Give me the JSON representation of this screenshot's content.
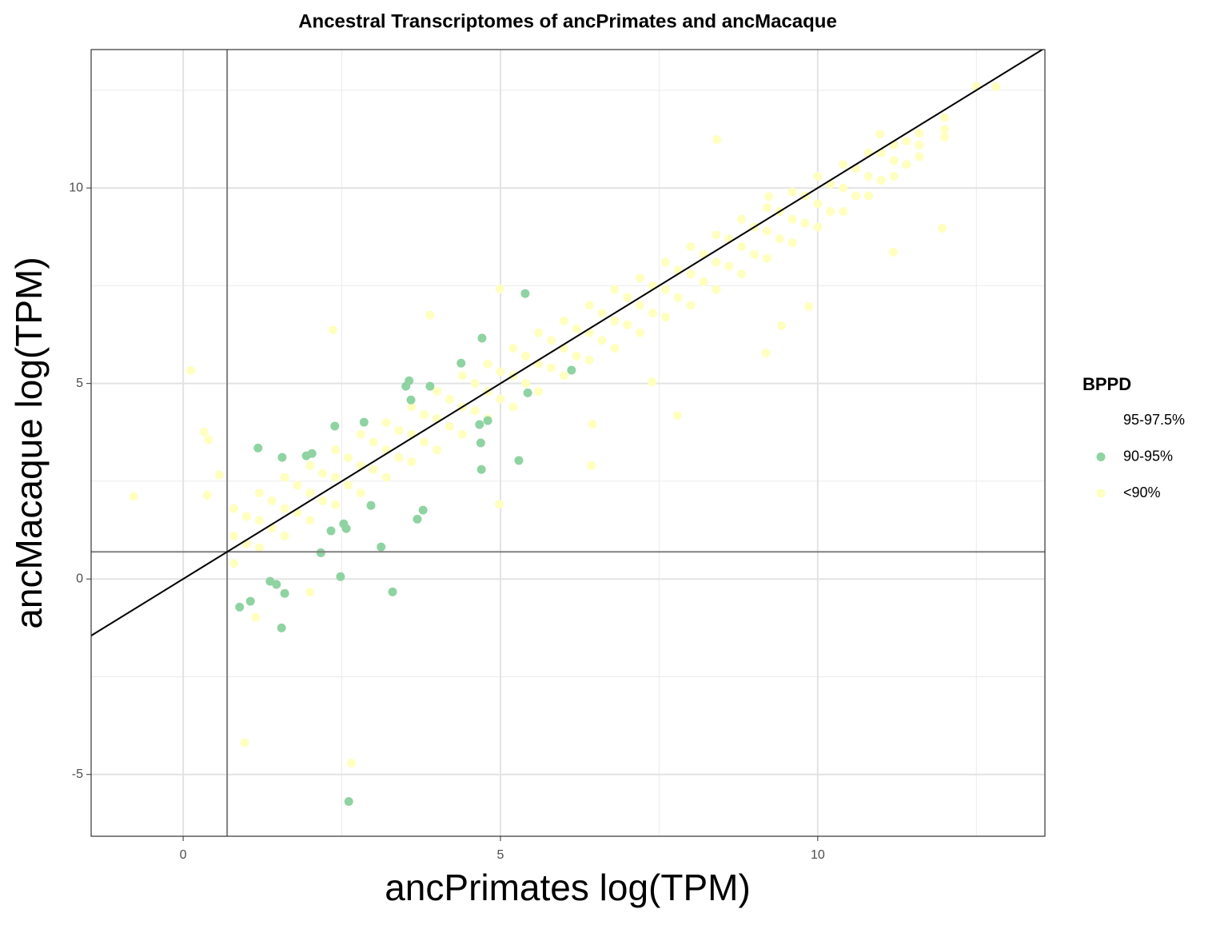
{
  "chart_data": {
    "type": "scatter",
    "title": "Ancestral Transcriptomes of ancPrimates and ancMacaque",
    "x_label": "ancPrimates log(TPM)",
    "y_label": "ancMacaque log(TPM)",
    "legend_title": "BPPD",
    "legend_position": "right",
    "grid": true,
    "xlim": [
      -1.45,
      13.58
    ],
    "ylim": [
      -6.58,
      13.54
    ],
    "xticks": [
      0,
      5,
      10
    ],
    "yticks": [
      -5,
      0,
      5,
      10
    ],
    "minor_xticks": [
      2.5,
      7.5,
      12.5
    ],
    "minor_yticks": [
      -2.5,
      2.5,
      7.5,
      12.5
    ],
    "reference_lines": {
      "x": 0.693,
      "y": 0.693,
      "slope": 1,
      "intercept": 0
    },
    "series": [
      {
        "name": "95-97.5%",
        "color": "#ffffff",
        "x": [],
        "values": []
      },
      {
        "name": "90-95%",
        "color": "#8fd3a3",
        "x": [
          5.39,
          4.71,
          4.38,
          6.12,
          3.56,
          3.51,
          3.89,
          5.43,
          3.59,
          2.85,
          4.8,
          4.67,
          2.39,
          1.18,
          4.69,
          1.56,
          1.94,
          2.03,
          5.29,
          4.7,
          2.96,
          3.78,
          3.69,
          2.53,
          2.57,
          2.33,
          3.12,
          2.17,
          2.48,
          1.37,
          1.47,
          1.6,
          3.3,
          1.06,
          0.89,
          1.55,
          2.61
        ],
        "values": [
          7.3,
          6.16,
          5.52,
          5.34,
          5.07,
          4.93,
          4.93,
          4.76,
          4.58,
          4.01,
          4.05,
          3.95,
          3.91,
          3.35,
          3.48,
          3.11,
          3.15,
          3.21,
          3.03,
          2.8,
          1.88,
          1.76,
          1.53,
          1.41,
          1.29,
          1.23,
          0.82,
          0.67,
          0.06,
          -0.06,
          -0.14,
          -0.37,
          -0.33,
          -0.57,
          -0.72,
          -1.25,
          -5.69
        ]
      },
      {
        "name": "<90%",
        "color": "#ffffbf",
        "x": [
          0.8,
          0.8,
          0.8,
          1.2,
          1.2,
          1.2,
          1.6,
          1.6,
          1.6,
          2.0,
          2.0,
          2.0,
          2.4,
          2.4,
          2.4,
          2.8,
          2.8,
          2.8,
          3.2,
          3.2,
          3.2,
          3.6,
          3.6,
          3.6,
          4.0,
          4.0,
          4.0,
          4.4,
          4.4,
          4.4,
          4.8,
          4.8,
          4.8,
          5.2,
          5.2,
          5.2,
          5.6,
          5.6,
          5.6,
          6.0,
          6.0,
          6.0,
          6.4,
          6.4,
          6.4,
          6.8,
          6.8,
          6.8,
          7.2,
          7.2,
          7.2,
          7.6,
          7.6,
          7.6,
          8.0,
          8.0,
          8.0,
          8.4,
          8.4,
          8.4,
          8.8,
          8.8,
          8.8,
          9.2,
          9.2,
          9.2,
          9.6,
          9.6,
          9.6,
          10.0,
          10.0,
          10.0,
          10.4,
          10.4,
          10.4,
          10.8,
          10.8,
          10.8,
          11.2,
          11.2,
          11.2,
          11.6,
          11.6,
          11.6,
          12.0,
          12.0,
          12.0,
          1.0,
          1.0,
          1.4,
          1.4,
          1.8,
          1.8,
          2.2,
          2.2,
          2.6,
          2.6,
          3.0,
          3.0,
          3.4,
          3.4,
          3.8,
          3.8,
          4.2,
          4.2,
          4.6,
          4.6,
          5.0,
          5.0,
          5.4,
          5.4,
          5.8,
          5.8,
          6.2,
          6.2,
          6.6,
          6.6,
          7.0,
          7.0,
          7.4,
          7.4,
          7.8,
          7.8,
          8.2,
          8.2,
          8.6,
          8.6,
          9.0,
          9.0,
          9.4,
          9.4,
          9.8,
          9.8,
          10.2,
          10.2,
          10.6,
          10.6,
          11.0,
          11.0,
          11.4,
          11.4,
          -0.78,
          0.12,
          0.33,
          0.4,
          0.38,
          0.57,
          0.97,
          2.65,
          1.14,
          2.0,
          2.36,
          3.89,
          4.99,
          4.98,
          6.43,
          7.79,
          6.45,
          7.39,
          8.41,
          9.18,
          9.23,
          9.86,
          11.19,
          11.96,
          10.98,
          12.5,
          12.81,
          9.43
        ],
        "values": [
          0.4,
          1.1,
          1.8,
          0.8,
          1.5,
          2.2,
          1.1,
          1.8,
          2.6,
          1.5,
          2.2,
          2.9,
          1.9,
          2.6,
          3.3,
          2.2,
          2.9,
          3.7,
          2.6,
          3.3,
          4.0,
          3.0,
          3.7,
          4.4,
          3.3,
          4.1,
          4.8,
          3.7,
          4.4,
          5.2,
          4.1,
          4.8,
          5.5,
          4.4,
          5.2,
          5.9,
          4.8,
          5.5,
          6.3,
          5.2,
          5.9,
          6.6,
          5.6,
          6.3,
          7.0,
          5.9,
          6.6,
          7.4,
          6.3,
          7.0,
          7.7,
          6.7,
          7.4,
          8.1,
          7.0,
          7.8,
          8.5,
          7.4,
          8.1,
          8.8,
          7.8,
          8.5,
          9.2,
          8.2,
          8.9,
          9.5,
          8.6,
          9.2,
          9.9,
          9.0,
          9.6,
          10.3,
          9.4,
          10.0,
          10.6,
          9.8,
          10.3,
          10.9,
          10.3,
          10.7,
          11.1,
          10.8,
          11.1,
          11.4,
          11.3,
          11.5,
          11.8,
          0.9,
          1.6,
          1.3,
          2.0,
          1.7,
          2.4,
          2.0,
          2.7,
          2.4,
          3.1,
          2.8,
          3.5,
          3.1,
          3.8,
          3.5,
          4.2,
          3.9,
          4.6,
          4.3,
          5.0,
          4.6,
          5.3,
          5.0,
          5.7,
          5.4,
          6.1,
          5.7,
          6.4,
          6.1,
          6.8,
          6.5,
          7.2,
          6.8,
          7.5,
          7.2,
          7.9,
          7.6,
          8.3,
          8.0,
          8.7,
          8.3,
          9.0,
          8.7,
          9.4,
          9.1,
          9.8,
          9.4,
          10.1,
          9.8,
          10.5,
          10.2,
          10.9,
          10.6,
          11.2,
          2.11,
          5.33,
          3.76,
          3.56,
          2.14,
          2.66,
          -4.19,
          -4.71,
          -0.98,
          -0.34,
          6.37,
          6.75,
          7.42,
          1.91,
          2.9,
          4.18,
          3.96,
          5.04,
          11.24,
          5.78,
          9.78,
          6.97,
          8.36,
          8.97,
          11.38,
          12.6,
          12.59,
          6.48
        ]
      }
    ]
  }
}
